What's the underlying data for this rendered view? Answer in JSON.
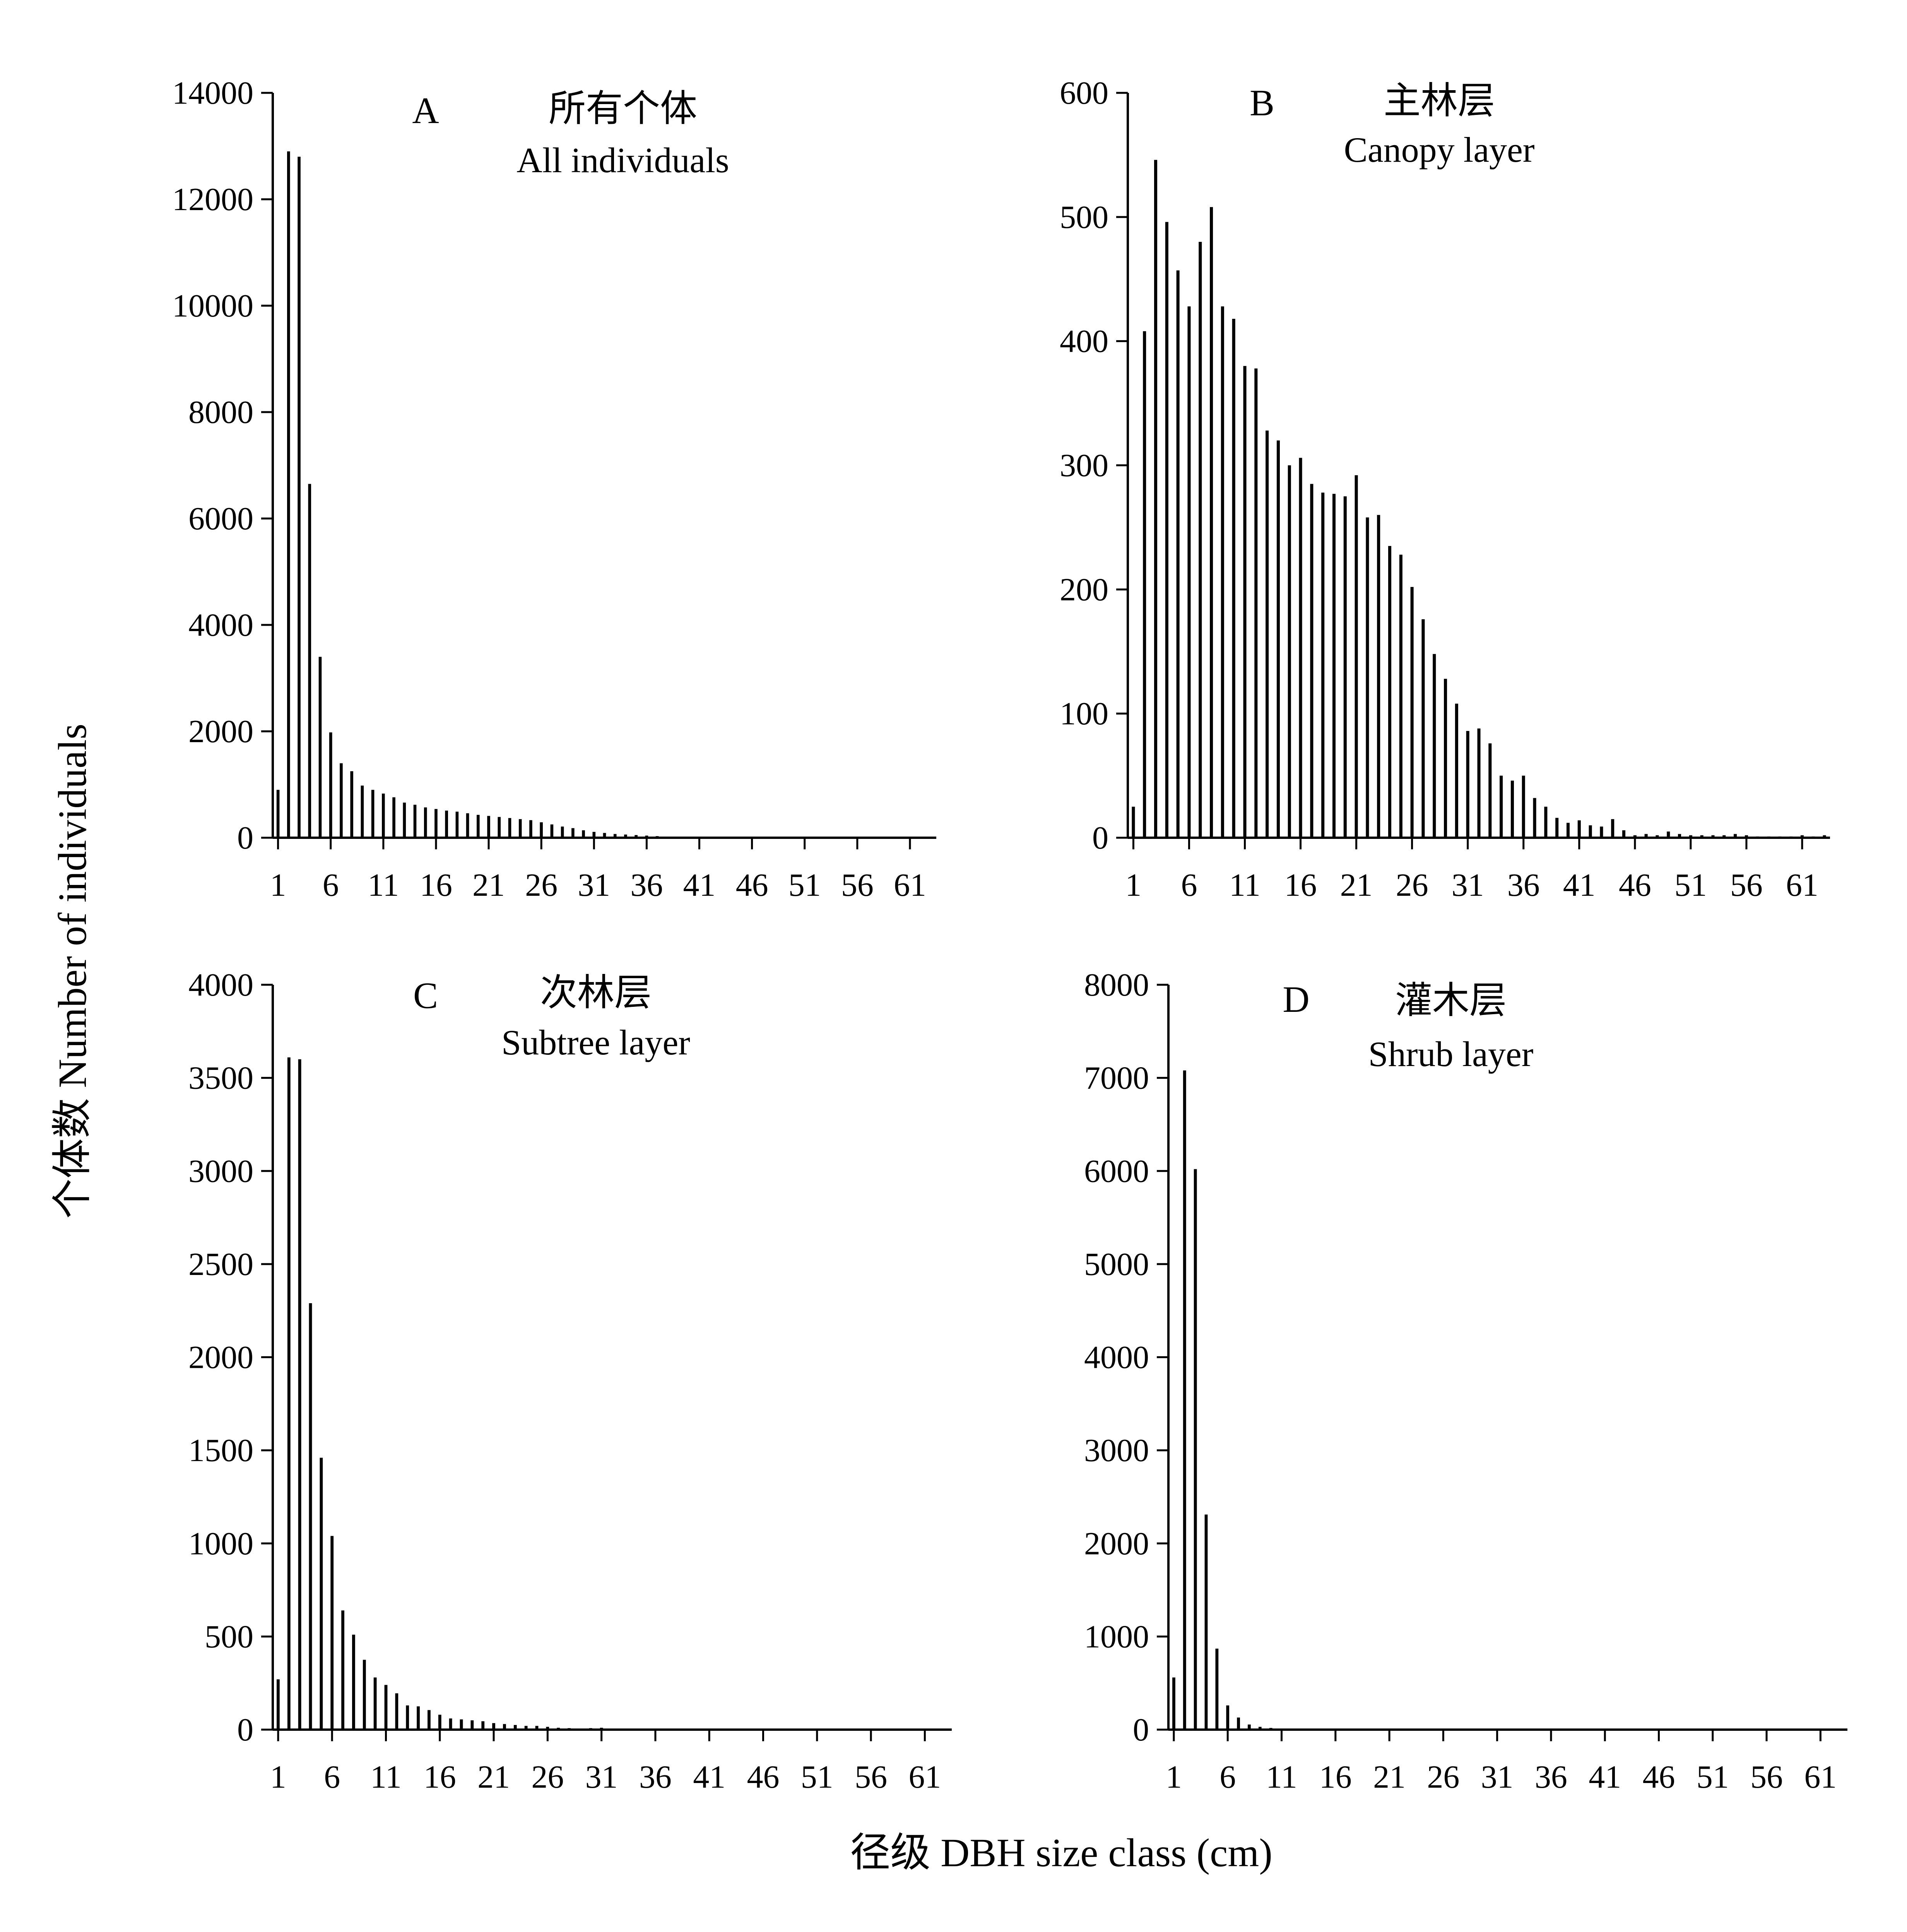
{
  "figure": {
    "ylabel": "个体数  Number of individuals",
    "xlabel": "径级  DBH size class (cm)"
  },
  "chart_data": [
    {
      "type": "bar",
      "panel": "A",
      "title": "所有个体",
      "subtitle": "All individuals",
      "xlabel": "",
      "ylabel": "",
      "x": [
        1,
        2,
        3,
        4,
        5,
        6,
        7,
        8,
        9,
        10,
        11,
        12,
        13,
        14,
        15,
        16,
        17,
        18,
        19,
        20,
        21,
        22,
        23,
        24,
        25,
        26,
        27,
        28,
        29,
        30,
        31,
        32,
        33,
        34,
        35,
        36,
        37,
        38,
        39,
        40,
        41,
        42,
        43,
        44,
        45,
        46,
        47,
        48,
        49,
        50,
        51,
        52,
        53,
        54,
        55,
        56,
        57,
        58,
        59,
        60,
        61,
        62,
        63
      ],
      "values": [
        900,
        12900,
        12800,
        6650,
        3400,
        1980,
        1400,
        1250,
        980,
        900,
        830,
        760,
        660,
        620,
        570,
        540,
        510,
        490,
        460,
        430,
        410,
        390,
        370,
        350,
        330,
        290,
        250,
        210,
        180,
        140,
        110,
        90,
        70,
        60,
        50,
        40,
        30,
        20,
        15,
        12,
        10,
        8,
        7,
        6,
        5,
        5,
        4,
        4,
        3,
        3,
        3,
        2,
        2,
        2,
        2,
        1,
        1,
        1,
        1,
        1,
        1,
        1,
        1
      ],
      "xticks": [
        "1",
        "6",
        "11",
        "16",
        "21",
        "26",
        "31",
        "36",
        "41",
        "46",
        "51",
        "56",
        "61"
      ],
      "yticks": [
        "0",
        "2000",
        "4000",
        "6000",
        "8000",
        "10000",
        "12000",
        "14000"
      ],
      "ylim": [
        0,
        14000
      ],
      "xlim": [
        0.5,
        63.5
      ],
      "legend": "none",
      "grid": false
    },
    {
      "type": "bar",
      "panel": "B",
      "title": "主林层",
      "subtitle": "Canopy layer",
      "xlabel": "",
      "ylabel": "",
      "x": [
        1,
        2,
        3,
        4,
        5,
        6,
        7,
        8,
        9,
        10,
        11,
        12,
        13,
        14,
        15,
        16,
        17,
        18,
        19,
        20,
        21,
        22,
        23,
        24,
        25,
        26,
        27,
        28,
        29,
        30,
        31,
        32,
        33,
        34,
        35,
        36,
        37,
        38,
        39,
        40,
        41,
        42,
        43,
        44,
        45,
        46,
        47,
        48,
        49,
        50,
        51,
        52,
        53,
        54,
        55,
        56,
        57,
        58,
        59,
        60,
        61,
        62,
        63
      ],
      "values": [
        25,
        408,
        546,
        496,
        457,
        428,
        480,
        508,
        428,
        418,
        380,
        378,
        328,
        320,
        300,
        306,
        285,
        278,
        277,
        275,
        292,
        258,
        260,
        235,
        228,
        202,
        176,
        148,
        128,
        108,
        86,
        88,
        76,
        50,
        46,
        50,
        32,
        25,
        16,
        12,
        14,
        10,
        9,
        15,
        6,
        2,
        3,
        2,
        5,
        3,
        2,
        2,
        2,
        2,
        3,
        2,
        1,
        1,
        1,
        1,
        2,
        1,
        2
      ],
      "xticks": [
        "1",
        "6",
        "11",
        "16",
        "21",
        "26",
        "31",
        "36",
        "41",
        "46",
        "51",
        "56",
        "61"
      ],
      "yticks": [
        "0",
        "100",
        "200",
        "300",
        "400",
        "500",
        "600"
      ],
      "ylim": [
        0,
        600
      ],
      "xlim": [
        0.5,
        63.5
      ],
      "legend": "none",
      "grid": false
    },
    {
      "type": "bar",
      "panel": "C",
      "title": "次林层",
      "subtitle": "Subtree layer",
      "xlabel": "",
      "ylabel": "",
      "x": [
        1,
        2,
        3,
        4,
        5,
        6,
        7,
        8,
        9,
        10,
        11,
        12,
        13,
        14,
        15,
        16,
        17,
        18,
        19,
        20,
        21,
        22,
        23,
        24,
        25,
        26,
        27,
        28,
        29,
        30,
        31,
        32,
        33,
        34,
        35,
        36,
        37,
        38,
        39,
        40,
        41,
        42,
        43,
        44,
        45,
        46,
        47,
        48,
        49,
        50,
        51,
        52,
        53,
        54,
        55,
        56,
        57,
        58,
        59,
        60,
        61,
        62,
        63
      ],
      "values": [
        270,
        3610,
        3600,
        2290,
        1460,
        1040,
        640,
        510,
        375,
        280,
        240,
        195,
        130,
        125,
        105,
        80,
        60,
        55,
        50,
        45,
        35,
        30,
        25,
        20,
        20,
        15,
        10,
        8,
        6,
        8,
        10,
        6,
        4,
        3,
        2,
        2,
        2,
        2,
        1,
        1,
        1,
        1,
        1,
        1,
        1,
        1,
        1,
        0,
        0,
        0,
        0,
        0,
        0,
        0,
        0,
        0,
        0,
        0,
        0,
        0,
        0,
        0,
        0
      ],
      "xticks": [
        "1",
        "6",
        "11",
        "16",
        "21",
        "26",
        "31",
        "36",
        "41",
        "46",
        "51",
        "56",
        "61"
      ],
      "yticks": [
        "0",
        "500",
        "1000",
        "1500",
        "2000",
        "2500",
        "3000",
        "3500",
        "4000"
      ],
      "ylim": [
        0,
        4000
      ],
      "xlim": [
        0.5,
        63.5
      ],
      "legend": "none",
      "grid": false
    },
    {
      "type": "bar",
      "panel": "D",
      "title": "灌木层",
      "subtitle": "Shrub layer",
      "xlabel": "",
      "ylabel": "",
      "x": [
        1,
        2,
        3,
        4,
        5,
        6,
        7,
        8,
        9,
        10,
        11,
        12,
        13,
        14,
        15,
        16,
        17,
        18,
        19,
        20,
        21,
        22,
        23,
        24,
        25,
        26,
        27,
        28,
        29,
        30,
        31,
        32,
        33,
        34,
        35,
        36,
        37,
        38,
        39,
        40,
        41,
        42,
        43,
        44,
        45,
        46,
        47,
        48,
        49,
        50,
        51,
        52,
        53,
        54,
        55,
        56,
        57,
        58,
        59,
        60,
        61,
        62,
        63
      ],
      "values": [
        560,
        7080,
        6020,
        2310,
        870,
        260,
        130,
        55,
        30,
        18,
        10,
        6,
        4,
        3,
        2,
        2,
        1,
        1,
        1,
        0,
        0,
        0,
        0,
        0,
        0,
        0,
        0,
        0,
        0,
        0,
        0,
        0,
        0,
        0,
        0,
        0,
        0,
        0,
        0,
        0,
        0,
        0,
        0,
        0,
        0,
        0,
        0,
        0,
        0,
        0,
        0,
        0,
        0,
        0,
        0,
        0,
        0,
        0,
        0,
        0,
        0,
        0,
        0
      ],
      "xticks": [
        "1",
        "6",
        "11",
        "16",
        "21",
        "26",
        "31",
        "36",
        "41",
        "46",
        "51",
        "56",
        "61"
      ],
      "yticks": [
        "0",
        "1000",
        "2000",
        "3000",
        "4000",
        "5000",
        "6000",
        "7000",
        "8000"
      ],
      "ylim": [
        0,
        8000
      ],
      "xlim": [
        0.5,
        63.5
      ],
      "legend": "none",
      "grid": false
    }
  ]
}
